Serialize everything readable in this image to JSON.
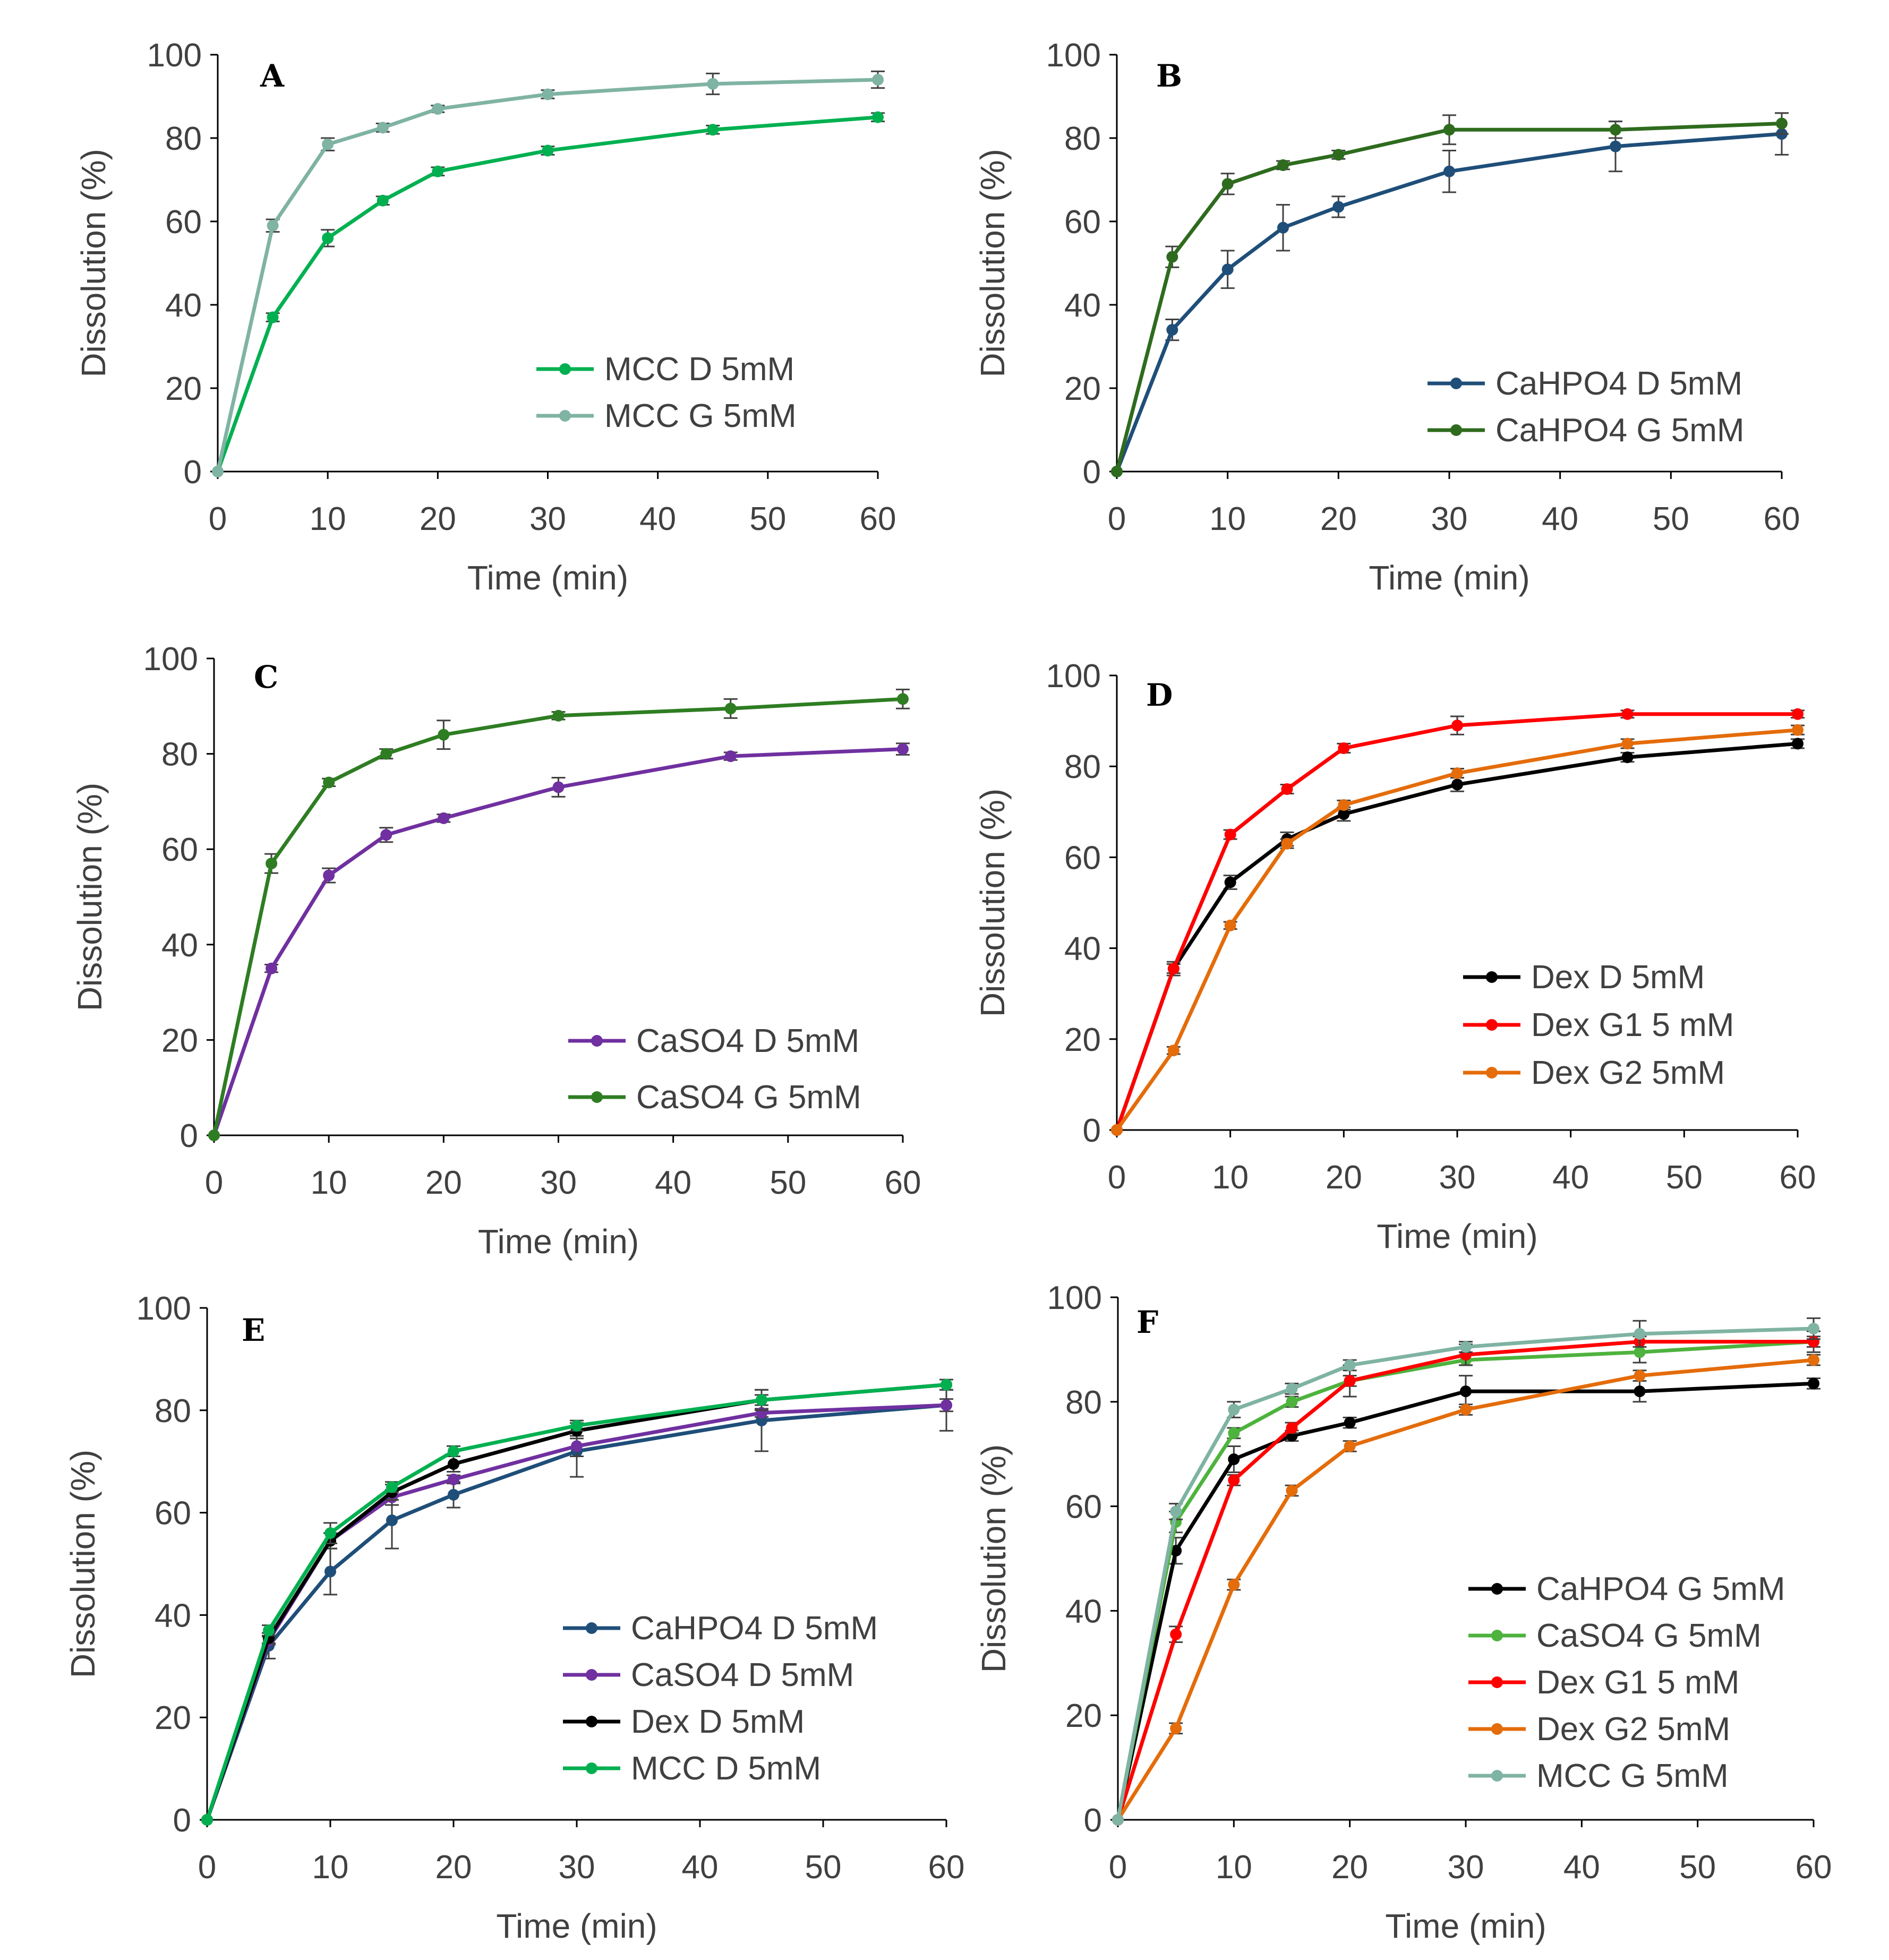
{
  "chart_data": [
    {
      "panel": "A",
      "type": "line",
      "xlabel": "Time (min)",
      "ylabel": "Dissolution (%)",
      "xlim": [
        0,
        60
      ],
      "ylim": [
        0,
        100
      ],
      "xticks": [
        "0",
        "10",
        "20",
        "30",
        "40",
        "50",
        "60"
      ],
      "yticks": [
        "0",
        "20",
        "40",
        "60",
        "80",
        "100"
      ],
      "x": [
        0,
        5,
        10,
        15,
        20,
        30,
        45,
        60
      ],
      "legend_position": "bottom-right",
      "series": [
        {
          "name": "MCC D 5mM",
          "color": "#00b050",
          "values": [
            0,
            37,
            56,
            65,
            72,
            77,
            82,
            85
          ],
          "errors": [
            0,
            1,
            2,
            1,
            1,
            1,
            1,
            1
          ]
        },
        {
          "name": "MCC G 5mM",
          "color": "#7fb3a3",
          "values": [
            0,
            59,
            78.5,
            82.5,
            87,
            90.5,
            93,
            94
          ],
          "errors": [
            0,
            1.5,
            1.5,
            1,
            0.8,
            1,
            2.5,
            2
          ]
        }
      ]
    },
    {
      "panel": "B",
      "type": "line",
      "xlabel": "Time (min)",
      "ylabel": "Dissolution (%)",
      "xlim": [
        0,
        60
      ],
      "ylim": [
        0,
        100
      ],
      "xticks": [
        "0",
        "10",
        "20",
        "30",
        "40",
        "50",
        "60"
      ],
      "yticks": [
        "0",
        "20",
        "40",
        "60",
        "80",
        "100"
      ],
      "x": [
        0,
        5,
        10,
        15,
        20,
        30,
        45,
        60
      ],
      "legend_position": "bottom-right",
      "series": [
        {
          "name": "CaHPO4 D 5mM",
          "color": "#1f4e79",
          "values": [
            0,
            34,
            48.5,
            58.5,
            63.5,
            72,
            78,
            81
          ],
          "errors": [
            0,
            2.5,
            4.5,
            5.5,
            2.5,
            5,
            6,
            5
          ]
        },
        {
          "name": "CaHPO4 G 5mM",
          "color": "#2e6b1e",
          "values": [
            0,
            51.5,
            69,
            73.5,
            76,
            82,
            82,
            83.5
          ],
          "errors": [
            0,
            2.5,
            2.5,
            1,
            1,
            3.5,
            2,
            2.5
          ]
        }
      ]
    },
    {
      "panel": "C",
      "type": "line",
      "xlabel": "Time (min)",
      "ylabel": "Dissolution (%)",
      "xlim": [
        0,
        60
      ],
      "ylim": [
        0,
        100
      ],
      "xticks": [
        "0",
        "10",
        "20",
        "30",
        "40",
        "50",
        "60"
      ],
      "yticks": [
        "0",
        "20",
        "40",
        "60",
        "80",
        "100"
      ],
      "x": [
        0,
        5,
        10,
        15,
        20,
        30,
        45,
        60
      ],
      "legend_position": "bottom-right",
      "series": [
        {
          "name": "CaSO4 D 5mM",
          "color": "#7030a0",
          "values": [
            0,
            35,
            54.5,
            63,
            66.5,
            73,
            79.5,
            81
          ],
          "errors": [
            0,
            0.8,
            1.5,
            1.5,
            0.8,
            2,
            0.8,
            1.2
          ]
        },
        {
          "name": "CaSO4 G 5mM",
          "color": "#2e7d22",
          "values": [
            0,
            57,
            74,
            80,
            84,
            88,
            89.5,
            91.5
          ],
          "errors": [
            0,
            2,
            0.8,
            1,
            3,
            0.8,
            2,
            2
          ]
        }
      ]
    },
    {
      "panel": "D",
      "type": "line",
      "xlabel": "Time (min)",
      "ylabel": "Dissolution (%)",
      "xlim": [
        0,
        60
      ],
      "ylim": [
        0,
        100
      ],
      "xticks": [
        "0",
        "10",
        "20",
        "30",
        "40",
        "50",
        "60"
      ],
      "yticks": [
        "0",
        "20",
        "40",
        "60",
        "80",
        "100"
      ],
      "x": [
        0,
        5,
        10,
        15,
        20,
        30,
        45,
        60
      ],
      "legend_position": "bottom-right",
      "series": [
        {
          "name": "Dex D 5mM",
          "color": "#000000",
          "values": [
            0,
            35.5,
            54.5,
            64,
            69.5,
            76,
            82,
            85
          ],
          "errors": [
            0,
            1,
            1.5,
            1.5,
            1.5,
            1.5,
            1,
            1
          ]
        },
        {
          "name": "Dex G1 5 mM",
          "color": "#ff0000",
          "values": [
            0,
            35.5,
            65,
            75,
            84,
            89,
            91.5,
            91.5
          ],
          "errors": [
            0,
            1.5,
            1,
            1,
            1,
            2,
            0.8,
            0.8
          ]
        },
        {
          "name": "Dex G2 5mM",
          "color": "#e46c0a",
          "values": [
            0,
            17.5,
            45,
            63,
            71.5,
            78.5,
            85,
            88
          ],
          "errors": [
            0,
            0.8,
            0.8,
            1,
            1,
            1,
            1,
            1
          ]
        }
      ]
    },
    {
      "panel": "E",
      "type": "line",
      "xlabel": "Time (min)",
      "ylabel": "Dissolution (%)",
      "xlim": [
        0,
        60
      ],
      "ylim": [
        0,
        100
      ],
      "xticks": [
        "0",
        "10",
        "20",
        "30",
        "40",
        "50",
        "60"
      ],
      "yticks": [
        "0",
        "20",
        "40",
        "60",
        "80",
        "100"
      ],
      "x": [
        0,
        5,
        10,
        15,
        20,
        30,
        45,
        60
      ],
      "legend_position": "bottom-right",
      "series": [
        {
          "name": "CaHPO4 D 5mM",
          "color": "#1f4e79",
          "values": [
            0,
            34,
            48.5,
            58.5,
            63.5,
            72,
            78,
            81
          ],
          "errors": [
            0,
            2.5,
            4.5,
            5.5,
            2.5,
            5,
            6,
            5
          ]
        },
        {
          "name": "CaSO4 D 5mM",
          "color": "#7030a0",
          "values": [
            0,
            35,
            54.5,
            63,
            66.5,
            73,
            79.5,
            81
          ],
          "errors": [
            0,
            0.8,
            1.5,
            1.5,
            0.8,
            2,
            0.8,
            1.2
          ]
        },
        {
          "name": "Dex D 5mM",
          "color": "#000000",
          "values": [
            0,
            35.5,
            54.5,
            64,
            69.5,
            76,
            82,
            85
          ],
          "errors": [
            0,
            1,
            1.5,
            1.5,
            1.5,
            1.5,
            1,
            1
          ]
        },
        {
          "name": "MCC D 5mM",
          "color": "#00b050",
          "values": [
            0,
            37,
            56,
            65,
            72,
            77,
            82,
            85
          ],
          "errors": [
            0,
            1,
            2,
            1,
            1,
            1,
            2,
            1
          ]
        }
      ]
    },
    {
      "panel": "F",
      "type": "line",
      "xlabel": "Time (min)",
      "ylabel": "Dissolution (%)",
      "xlim": [
        0,
        60
      ],
      "ylim": [
        0,
        100
      ],
      "xticks": [
        "0",
        "10",
        "20",
        "30",
        "40",
        "50",
        "60"
      ],
      "yticks": [
        "0",
        "20",
        "40",
        "60",
        "80",
        "100"
      ],
      "x": [
        0,
        5,
        10,
        15,
        20,
        30,
        45,
        60
      ],
      "legend_position": "bottom-right",
      "series": [
        {
          "name": "CaHPO4 G 5mM",
          "color": "#000000",
          "values": [
            0,
            51.5,
            69,
            73.5,
            76,
            82,
            82,
            83.5
          ],
          "errors": [
            0,
            2.5,
            2.5,
            1,
            1,
            3,
            2,
            1
          ]
        },
        {
          "name": "CaSO4 G 5mM",
          "color": "#4db33d",
          "values": [
            0,
            57,
            74,
            80,
            84,
            88,
            89.5,
            91.5
          ],
          "errors": [
            0,
            2,
            1,
            1,
            3,
            1,
            2,
            2
          ]
        },
        {
          "name": "Dex G1 5 mM",
          "color": "#ff0000",
          "values": [
            0,
            35.5,
            65,
            75,
            84,
            89,
            91.5,
            91.5
          ],
          "errors": [
            0,
            1.5,
            1,
            1,
            1,
            2,
            1,
            1
          ]
        },
        {
          "name": "Dex G2 5mM",
          "color": "#e46c0a",
          "values": [
            0,
            17.5,
            45,
            63,
            71.5,
            78.5,
            85,
            88
          ],
          "errors": [
            0,
            1,
            1,
            1,
            1,
            1,
            1,
            1
          ]
        },
        {
          "name": "MCC G 5mM",
          "color": "#7fb3a3",
          "values": [
            0,
            59,
            78.5,
            82.5,
            87,
            90.5,
            93,
            94
          ],
          "errors": [
            0,
            1.5,
            1.5,
            1,
            1,
            1,
            2.5,
            2
          ]
        }
      ]
    }
  ]
}
